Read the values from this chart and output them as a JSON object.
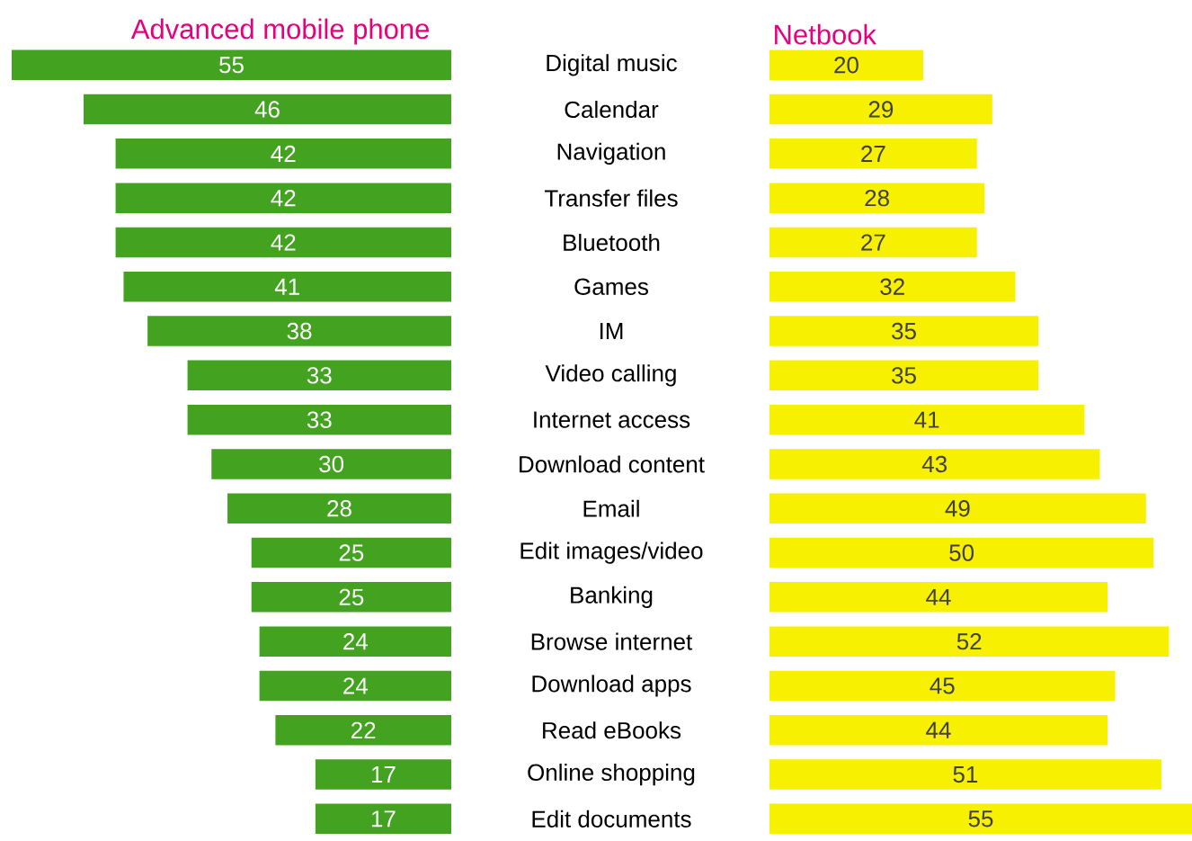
{
  "chart_data": [
    {
      "type": "bar",
      "orientation": "horizontal",
      "title": "Advanced mobile phone",
      "categories": [
        "Digital music",
        "Calendar",
        "Navigation",
        "Transfer files",
        "Bluetooth",
        "Games",
        "IM",
        "Video calling",
        "Internet access",
        "Download content",
        "Email",
        "Edit images/video",
        "Banking",
        "Browse internet",
        "Download apps",
        "Read eBooks",
        "Online shopping",
        "Edit documents"
      ],
      "values": [
        55,
        46,
        42,
        42,
        42,
        41,
        38,
        33,
        33,
        30,
        28,
        25,
        25,
        24,
        24,
        22,
        17,
        17
      ],
      "color": "#43a321",
      "data_labels": true,
      "tick_labels": "y"
    },
    {
      "type": "bar",
      "orientation": "horizontal",
      "title": "Netbook",
      "categories": [
        null,
        null,
        null,
        null,
        null,
        null,
        null,
        null,
        null,
        null,
        null,
        null,
        null,
        null,
        null,
        null,
        null,
        null
      ],
      "values": [
        20,
        29,
        27,
        28,
        27,
        32,
        35,
        35,
        41,
        43,
        49,
        50,
        44,
        52,
        45,
        44,
        51,
        55
      ],
      "color": "#f7f000",
      "data_labels": true,
      "tick_labels": false
    }
  ]
}
